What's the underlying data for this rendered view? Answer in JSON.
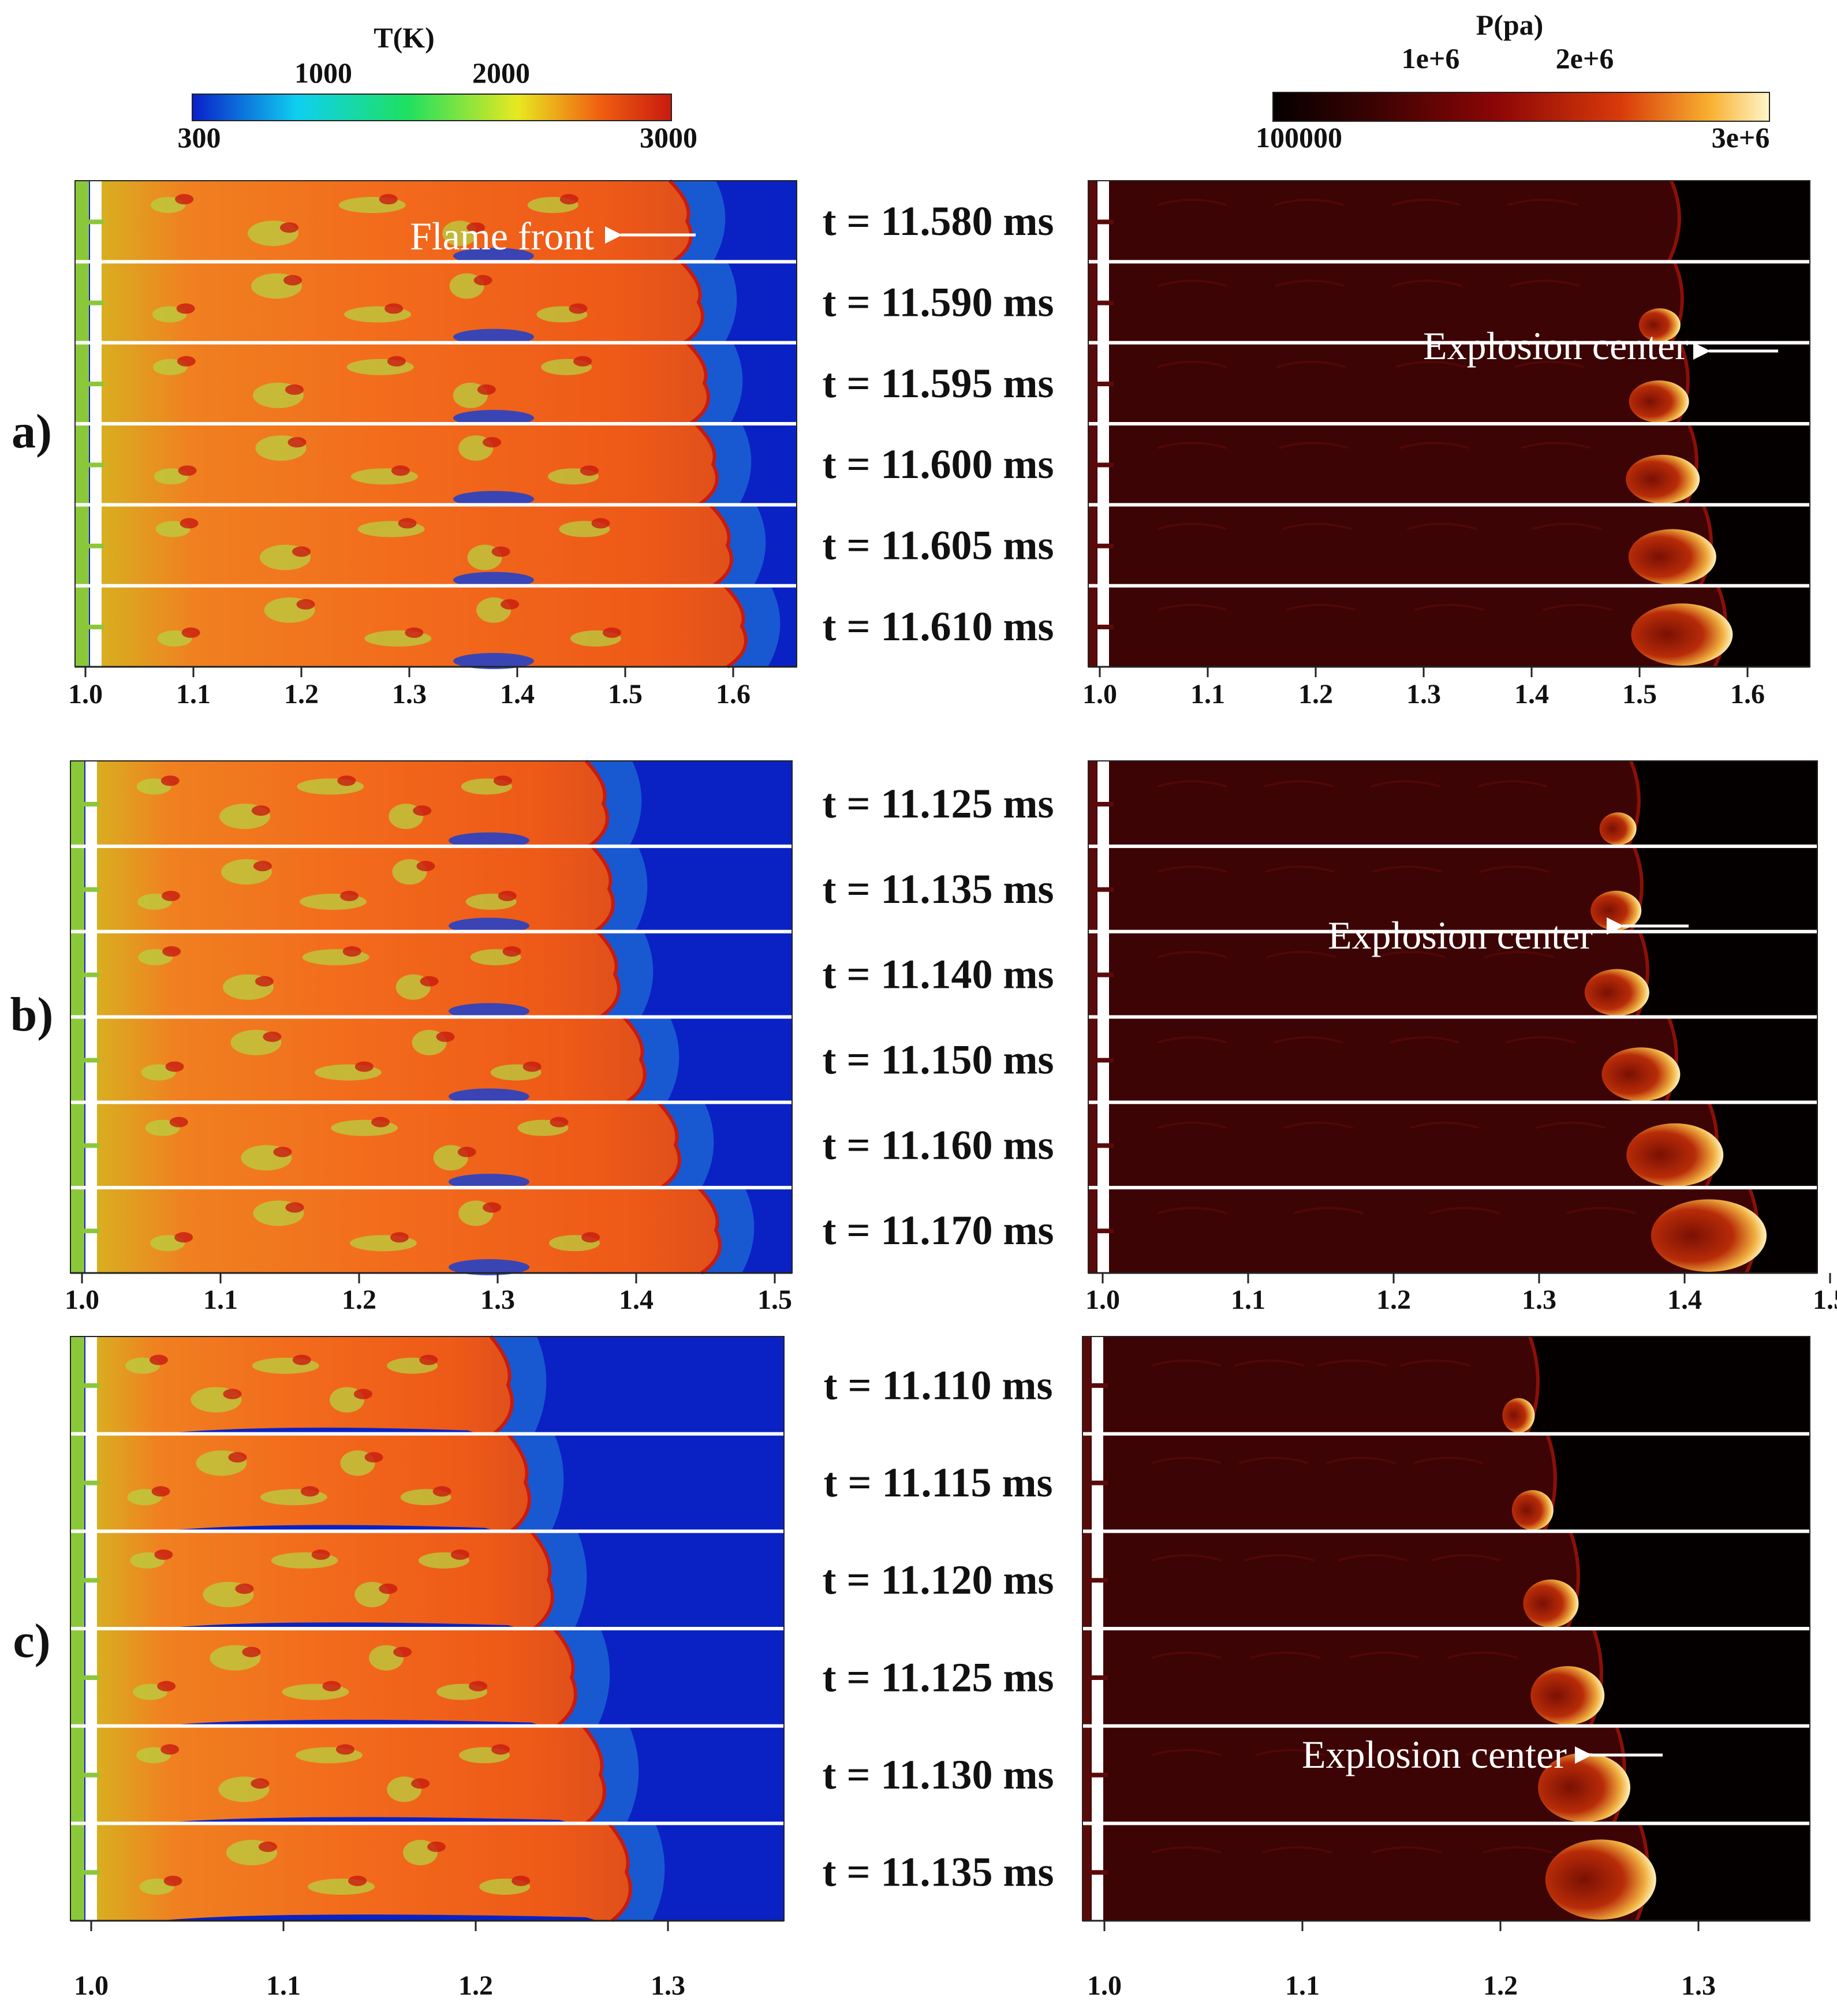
{
  "colorbars": {
    "temperature": {
      "title": "T(K)",
      "ticks_top": [
        "1000",
        "2000"
      ],
      "ticks_bottom": [
        "300",
        "3000"
      ],
      "colors": [
        "#0a1fc9",
        "#0fd0f0",
        "#1ee060",
        "#e8e820",
        "#f06010",
        "#c81a10"
      ]
    },
    "pressure": {
      "title": "P(pa)",
      "ticks_top": [
        "1e+6",
        "2e+6"
      ],
      "ticks_bottom": [
        "100000",
        "3e+6"
      ],
      "colors": [
        "#050000",
        "#3a0202",
        "#8c0606",
        "#d83a0a",
        "#f8b030",
        "#fff6c8"
      ]
    }
  },
  "panels": [
    {
      "label": "a)",
      "times": [
        "t = 11.580 ms",
        "t = 11.590 ms",
        "t = 11.595 ms",
        "t = 11.600 ms",
        "t = 11.605 ms",
        "t = 11.610 ms"
      ],
      "x_ticks": [
        "1.0",
        "1.1",
        "1.2",
        "1.3",
        "1.4",
        "1.5",
        "1.6"
      ],
      "annotation_left": "Flame front",
      "annotation_right": "Explosion center"
    },
    {
      "label": "b)",
      "times": [
        "t = 11.125 ms",
        "t = 11.135 ms",
        "t = 11.140 ms",
        "t = 11.150 ms",
        "t = 11.160 ms",
        "t = 11.170 ms"
      ],
      "x_ticks": [
        "1.0",
        "1.1",
        "1.2",
        "1.3",
        "1.4",
        "1.5"
      ],
      "annotation_right": "Explosion center"
    },
    {
      "label": "c)",
      "times": [
        "t = 11.110 ms",
        "t = 11.115 ms",
        "t = 11.120 ms",
        "t = 11.125 ms",
        "t = 11.130 ms",
        "t = 11.135 ms"
      ],
      "x_ticks": [
        "1.0",
        "1.1",
        "1.2",
        "1.3"
      ],
      "annotation_right": "Explosion center"
    }
  ]
}
